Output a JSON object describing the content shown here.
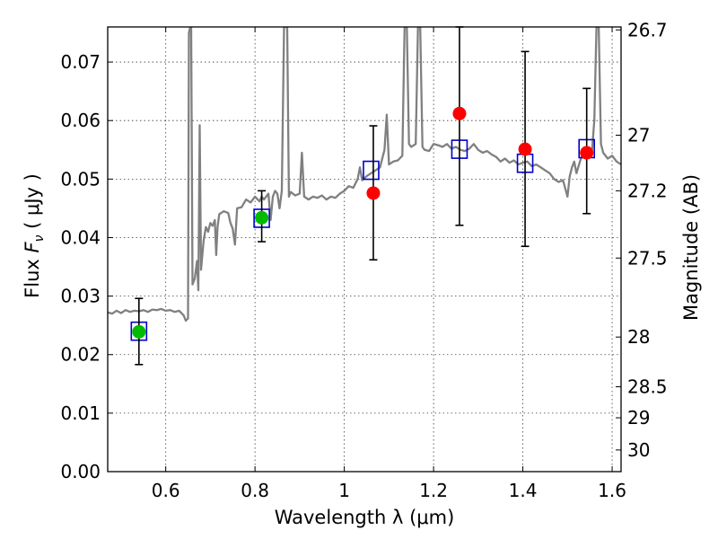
{
  "chart_data": {
    "type": "scatter",
    "xlabel": "Wavelength  λ (μm)",
    "ylabel": "Flux  F_ν  ( μJy )",
    "ylabel_parts": {
      "prefix": "Flux  ",
      "symbol": "F",
      "subscript": "ν",
      "unit": "  ( μJy )"
    },
    "y2label": "Magnitude (AB)",
    "xlim": [
      0.47,
      1.62
    ],
    "ylim": [
      0.0,
      0.076
    ],
    "grid": true,
    "x_ticks": [
      {
        "value": 0.6,
        "label": "0.6"
      },
      {
        "value": 0.8,
        "label": "0.8"
      },
      {
        "value": 1.0,
        "label": "1"
      },
      {
        "value": 1.2,
        "label": "1.2"
      },
      {
        "value": 1.4,
        "label": "1.4"
      },
      {
        "value": 1.6,
        "label": "1.6"
      }
    ],
    "y_ticks": [
      {
        "value": 0.0,
        "label": "0.00"
      },
      {
        "value": 0.01,
        "label": "0.01"
      },
      {
        "value": 0.02,
        "label": "0.02"
      },
      {
        "value": 0.03,
        "label": "0.03"
      },
      {
        "value": 0.04,
        "label": "0.04"
      },
      {
        "value": 0.05,
        "label": "0.05"
      },
      {
        "value": 0.06,
        "label": "0.06"
      },
      {
        "value": 0.07,
        "label": "0.07"
      }
    ],
    "y2_ticks": [
      {
        "flux": 0.0755,
        "label": "26.7"
      },
      {
        "flux": 0.0575,
        "label": "27"
      },
      {
        "flux": 0.048,
        "label": "27.2"
      },
      {
        "flux": 0.0365,
        "label": "27.5"
      },
      {
        "flux": 0.023,
        "label": "28"
      },
      {
        "flux": 0.0145,
        "label": "28.5"
      },
      {
        "flux": 0.0092,
        "label": "29"
      },
      {
        "flux": 0.0037,
        "label": "30"
      }
    ],
    "series": [
      {
        "name": "observed",
        "color": "#00bb00",
        "points": [
          {
            "x": 0.54,
            "y": 0.0239,
            "ylo": 0.0183,
            "yhi": 0.0296
          },
          {
            "x": 0.815,
            "y": 0.0434,
            "ylo": 0.0393,
            "yhi": 0.048
          }
        ]
      },
      {
        "name": "observed-red",
        "color": "#ff0000",
        "points": [
          {
            "x": 1.065,
            "y": 0.0476,
            "ylo": 0.0362,
            "yhi": 0.0591
          },
          {
            "x": 1.258,
            "y": 0.0612,
            "ylo": 0.0421,
            "yhi": 0.076
          },
          {
            "x": 1.405,
            "y": 0.0551,
            "ylo": 0.0385,
            "yhi": 0.0718
          },
          {
            "x": 1.543,
            "y": 0.0545,
            "ylo": 0.0441,
            "yhi": 0.0655
          }
        ]
      },
      {
        "name": "model-band",
        "color": "#0000cc",
        "points": [
          {
            "x": 0.54,
            "y": 0.024
          },
          {
            "x": 0.815,
            "y": 0.0433
          },
          {
            "x": 1.06,
            "y": 0.0515
          },
          {
            "x": 1.258,
            "y": 0.0551
          },
          {
            "x": 1.405,
            "y": 0.0527
          },
          {
            "x": 1.543,
            "y": 0.0552
          }
        ]
      },
      {
        "name": "model-spectrum",
        "color": "#808080",
        "points": [
          [
            0.47,
            0.0272
          ],
          [
            0.48,
            0.027
          ],
          [
            0.49,
            0.0275
          ],
          [
            0.5,
            0.0271
          ],
          [
            0.51,
            0.0276
          ],
          [
            0.52,
            0.0273
          ],
          [
            0.53,
            0.0275
          ],
          [
            0.54,
            0.0274
          ],
          [
            0.55,
            0.0276
          ],
          [
            0.56,
            0.0273
          ],
          [
            0.57,
            0.0277
          ],
          [
            0.58,
            0.0276
          ],
          [
            0.59,
            0.0278
          ],
          [
            0.6,
            0.0275
          ],
          [
            0.61,
            0.0276
          ],
          [
            0.62,
            0.0273
          ],
          [
            0.63,
            0.0275
          ],
          [
            0.64,
            0.0267
          ],
          [
            0.645,
            0.0258
          ],
          [
            0.65,
            0.0262
          ],
          [
            0.652,
            0.075
          ],
          [
            0.655,
            0.076
          ],
          [
            0.657,
            0.076
          ],
          [
            0.66,
            0.032
          ],
          [
            0.665,
            0.033
          ],
          [
            0.67,
            0.036
          ],
          [
            0.673,
            0.031
          ],
          [
            0.676,
            0.0592
          ],
          [
            0.679,
            0.0345
          ],
          [
            0.685,
            0.0395
          ],
          [
            0.69,
            0.0418
          ],
          [
            0.695,
            0.041
          ],
          [
            0.7,
            0.0425
          ],
          [
            0.705,
            0.042
          ],
          [
            0.71,
            0.043
          ],
          [
            0.713,
            0.037
          ],
          [
            0.716,
            0.0418
          ],
          [
            0.72,
            0.044
          ],
          [
            0.73,
            0.0445
          ],
          [
            0.74,
            0.0442
          ],
          [
            0.745,
            0.0425
          ],
          [
            0.75,
            0.0415
          ],
          [
            0.755,
            0.0388
          ],
          [
            0.76,
            0.045
          ],
          [
            0.77,
            0.0452
          ],
          [
            0.78,
            0.0465
          ],
          [
            0.79,
            0.046
          ],
          [
            0.8,
            0.047
          ],
          [
            0.81,
            0.0462
          ],
          [
            0.815,
            0.047
          ],
          [
            0.82,
            0.0465
          ],
          [
            0.83,
            0.0475
          ],
          [
            0.835,
            0.043
          ],
          [
            0.84,
            0.047
          ],
          [
            0.845,
            0.048
          ],
          [
            0.85,
            0.0475
          ],
          [
            0.855,
            0.045
          ],
          [
            0.86,
            0.048
          ],
          [
            0.865,
            0.076
          ],
          [
            0.868,
            0.076
          ],
          [
            0.872,
            0.076
          ],
          [
            0.876,
            0.047
          ],
          [
            0.88,
            0.0478
          ],
          [
            0.89,
            0.0472
          ],
          [
            0.9,
            0.0475
          ],
          [
            0.905,
            0.0545
          ],
          [
            0.91,
            0.047
          ],
          [
            0.92,
            0.0465
          ],
          [
            0.93,
            0.047
          ],
          [
            0.94,
            0.0468
          ],
          [
            0.95,
            0.0472
          ],
          [
            0.96,
            0.0465
          ],
          [
            0.97,
            0.047
          ],
          [
            0.98,
            0.0468
          ],
          [
            0.99,
            0.0475
          ],
          [
            1.0,
            0.048
          ],
          [
            1.01,
            0.0488
          ],
          [
            1.02,
            0.0485
          ],
          [
            1.03,
            0.05
          ],
          [
            1.035,
            0.052
          ],
          [
            1.04,
            0.0498
          ],
          [
            1.05,
            0.0505
          ],
          [
            1.06,
            0.051
          ],
          [
            1.07,
            0.0515
          ],
          [
            1.08,
            0.052
          ],
          [
            1.09,
            0.055
          ],
          [
            1.095,
            0.061
          ],
          [
            1.1,
            0.0525
          ],
          [
            1.11,
            0.053
          ],
          [
            1.12,
            0.0532
          ],
          [
            1.13,
            0.054
          ],
          [
            1.135,
            0.076
          ],
          [
            1.14,
            0.076
          ],
          [
            1.145,
            0.056
          ],
          [
            1.15,
            0.0555
          ],
          [
            1.16,
            0.056
          ],
          [
            1.165,
            0.076
          ],
          [
            1.17,
            0.076
          ],
          [
            1.175,
            0.0555
          ],
          [
            1.18,
            0.055
          ],
          [
            1.19,
            0.0548
          ],
          [
            1.2,
            0.056
          ],
          [
            1.21,
            0.0558
          ],
          [
            1.22,
            0.0555
          ],
          [
            1.23,
            0.056
          ],
          [
            1.24,
            0.0552
          ],
          [
            1.25,
            0.0555
          ],
          [
            1.26,
            0.055
          ],
          [
            1.27,
            0.0548
          ],
          [
            1.28,
            0.0552
          ],
          [
            1.29,
            0.056
          ],
          [
            1.3,
            0.055
          ],
          [
            1.31,
            0.0545
          ],
          [
            1.32,
            0.0548
          ],
          [
            1.33,
            0.0542
          ],
          [
            1.34,
            0.0538
          ],
          [
            1.35,
            0.053
          ],
          [
            1.36,
            0.0535
          ],
          [
            1.37,
            0.0528
          ],
          [
            1.38,
            0.0532
          ],
          [
            1.39,
            0.0525
          ],
          [
            1.4,
            0.0528
          ],
          [
            1.41,
            0.053
          ],
          [
            1.42,
            0.0522
          ],
          [
            1.43,
            0.0525
          ],
          [
            1.44,
            0.052
          ],
          [
            1.45,
            0.0515
          ],
          [
            1.46,
            0.051
          ],
          [
            1.47,
            0.05
          ],
          [
            1.48,
            0.0495
          ],
          [
            1.49,
            0.0498
          ],
          [
            1.5,
            0.047
          ],
          [
            1.505,
            0.0505
          ],
          [
            1.51,
            0.052
          ],
          [
            1.515,
            0.053
          ],
          [
            1.52,
            0.051
          ],
          [
            1.53,
            0.0535
          ],
          [
            1.54,
            0.0548
          ],
          [
            1.55,
            0.0545
          ],
          [
            1.555,
            0.055
          ],
          [
            1.56,
            0.06
          ],
          [
            1.565,
            0.076
          ],
          [
            1.57,
            0.076
          ],
          [
            1.575,
            0.056
          ],
          [
            1.58,
            0.0545
          ],
          [
            1.59,
            0.0535
          ],
          [
            1.6,
            0.054
          ],
          [
            1.61,
            0.053
          ],
          [
            1.62,
            0.0525
          ]
        ]
      }
    ]
  }
}
